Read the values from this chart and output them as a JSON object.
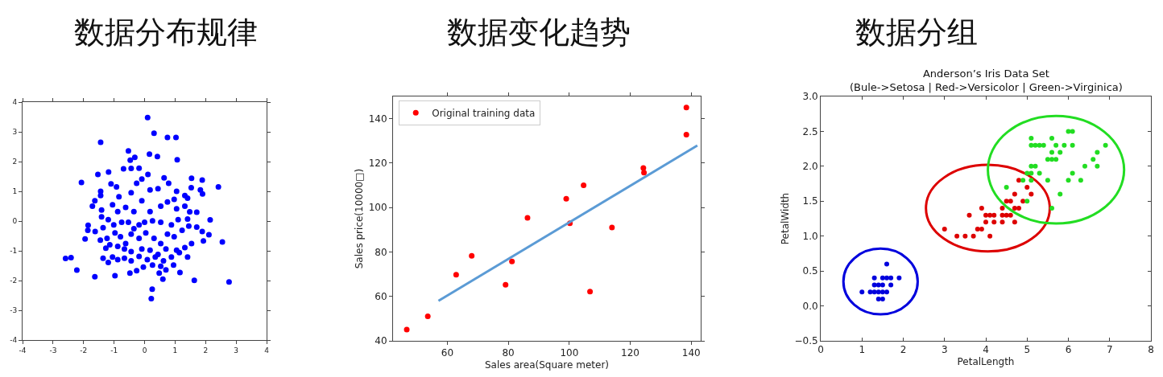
{
  "chart_data": [
    {
      "type": "scatter",
      "title": "数据分布规律",
      "xlim": [
        -4,
        4
      ],
      "ylim": [
        -4,
        4
      ],
      "xticks": [
        -4,
        -3,
        -2,
        -1,
        0,
        1,
        2,
        3,
        4
      ],
      "yticks": [
        -4,
        -3,
        -2,
        -1,
        0,
        1,
        2,
        3,
        4
      ],
      "legend": false,
      "marker": "circle",
      "series": [
        {
          "color": "#0000ff",
          "x": [
            0.1,
            0.31,
            0.75,
            1.03,
            -1.44,
            0.16,
            0.42,
            1.07,
            -0.53,
            -0.47,
            -0.32,
            -1.18,
            -1.53,
            -2.07,
            -0.69,
            -0.44,
            -0.18,
            0.11,
            0.64,
            1.54,
            1.89,
            2.42,
            1.53,
            1.83,
            1.9,
            -1.44,
            -1.44,
            -1.1,
            -0.92,
            -0.84,
            -0.44,
            -0.26,
            -0.09,
            0.18,
            0.44,
            0.79,
            1.05,
            1.32,
            1.41,
            -1.63,
            -1.71,
            -1.41,
            -1.41,
            -1.05,
            -0.88,
            -0.62,
            -0.35,
            -0.09,
            0.18,
            0.53,
            0.75,
            0.97,
            1.05,
            1.32,
            1.48,
            1.71,
            2.15,
            1.41,
            1.1,
            0.88,
            0.53,
            0.26,
            0.0,
            -0.18,
            -0.35,
            -0.53,
            -0.75,
            -1.01,
            -1.19,
            -1.36,
            -1.85,
            -1.86,
            -1.62,
            -1.95,
            -1.45,
            -1.23,
            -0.97,
            -0.79,
            -0.62,
            -0.44,
            -0.18,
            0.04,
            0.31,
            0.53,
            0.75,
            0.97,
            1.23,
            1.45,
            1.71,
            1.89,
            2.11,
            1.93,
            1.54,
            2.55,
            1.32,
            1.05,
            0.7,
            0.44,
            0.18,
            -0.09,
            -0.44,
            -0.66,
            -0.88,
            -1.14,
            -1.27,
            -1.36,
            -1.19,
            -1.05,
            -0.88,
            -0.66,
            -0.44,
            -0.18,
            0.09,
            0.35,
            0.62,
            0.88,
            1.14,
            1.41,
            0.95,
            0.7,
            0.53,
            0.26,
            -0.04,
            -0.26,
            -0.48,
            -0.97,
            -1.63,
            -2.22,
            -2.59,
            -2.41,
            0.48,
            0.6,
            1.16,
            1.63,
            2.77,
            0.25,
            0.22
          ],
          "values": [
            3.48,
            2.95,
            2.81,
            2.81,
            2.65,
            2.25,
            2.17,
            2.06,
            2.36,
            2.05,
            2.14,
            1.65,
            1.57,
            1.3,
            1.76,
            1.77,
            1.78,
            1.57,
            1.45,
            1.44,
            1.38,
            1.15,
            1.12,
            1.05,
            0.91,
            1.0,
            0.86,
            1.25,
            1.15,
            0.82,
            0.95,
            1.27,
            1.41,
            1.05,
            1.09,
            1.27,
            1.0,
            0.86,
            0.77,
            0.68,
            0.5,
            0.37,
            0.14,
            0.55,
            0.32,
            0.46,
            0.32,
            0.68,
            0.32,
            0.5,
            0.64,
            0.73,
            0.41,
            0.5,
            0.31,
            0.3,
            0.04,
            0.07,
            0.05,
            -0.13,
            -0.04,
            0.01,
            -0.04,
            -0.13,
            -0.26,
            -0.04,
            -0.04,
            -0.13,
            0.05,
            -0.22,
            -0.14,
            -0.31,
            -0.35,
            -0.6,
            -0.64,
            -0.58,
            -0.4,
            -0.53,
            -0.76,
            -0.44,
            -0.58,
            -0.4,
            -0.58,
            -0.76,
            -0.44,
            -0.53,
            -0.31,
            -0.17,
            -0.2,
            -0.35,
            -0.46,
            -0.67,
            -0.76,
            -0.7,
            -0.89,
            -0.98,
            -0.94,
            -1.12,
            -0.98,
            -0.94,
            -1.03,
            -0.94,
            -0.85,
            -0.8,
            -0.91,
            -1.25,
            -1.39,
            -1.21,
            -1.3,
            -1.25,
            -1.34,
            -1.19,
            -1.3,
            -1.21,
            -1.34,
            -1.21,
            -1.06,
            -1.21,
            -1.48,
            -1.64,
            -1.52,
            -1.48,
            -1.55,
            -1.67,
            -1.75,
            -1.84,
            -1.87,
            -1.65,
            -1.26,
            -1.23,
            -1.75,
            -1.95,
            -1.73,
            -1.99,
            -2.05,
            -2.29,
            -2.61
          ]
        }
      ]
    },
    {
      "type": "scatter",
      "title": "数据变化趋势",
      "xlabel": "Sales area(Square meter)",
      "ylabel": "Sales price(10000□)",
      "xlim": [
        42.2,
        143.1
      ],
      "ylim": [
        40,
        150
      ],
      "xticks": [
        60,
        80,
        100,
        120,
        140
      ],
      "yticks": [
        40,
        60,
        80,
        100,
        120,
        140
      ],
      "legend": "top left",
      "marker": "circle",
      "series": [
        {
          "name": "Original training data",
          "color": "#ff0000",
          "x": [
            46.7,
            53.6,
            62.9,
            68.0,
            79.1,
            81.2,
            86.3,
            99.0,
            100.2,
            104.7,
            106.8,
            114.0,
            124.3,
            124.5,
            138.4,
            138.4
          ],
          "values": [
            45.1,
            51.0,
            69.8,
            78.3,
            65.2,
            75.7,
            95.4,
            104.0,
            92.9,
            110.0,
            62.2,
            91.0,
            117.8,
            115.7,
            145.0,
            132.8
          ]
        },
        {
          "type": "line",
          "marker": "none",
          "color": "#5b9bd5",
          "x": [
            57.1,
            142.0
          ],
          "values": [
            58.0,
            127.9
          ]
        }
      ]
    },
    {
      "type": "scatter",
      "title": "数据分组",
      "subtitle": "Anderson’s Iris Data Set\n(Bule->Setosa | Red->Versicolor | Green->Virginica)",
      "xlabel": "PetalLength",
      "ylabel": "PetalWidth",
      "xlim": [
        0,
        8
      ],
      "ylim": [
        -0.5,
        3.0
      ],
      "xticks": [
        0,
        1,
        2,
        3,
        4,
        5,
        6,
        7,
        8
      ],
      "yticks": [
        {
          "value": -0.5,
          "label": "−0.5"
        },
        {
          "value": 0,
          "label": "0.0"
        },
        {
          "value": 0.5,
          "label": "0.5"
        },
        {
          "value": 1,
          "label": "1.0"
        },
        {
          "value": 1.5,
          "label": "1.5"
        },
        {
          "value": 2,
          "label": "2.0"
        },
        {
          "value": 2.5,
          "label": "2.5"
        },
        {
          "value": 3,
          "label": "3.0"
        }
      ],
      "legend": false,
      "marker": "circle",
      "series": [
        {
          "color": "#0000dd",
          "x": [
            1.0,
            1.2,
            1.3,
            1.4,
            1.5,
            1.6,
            1.3,
            1.4,
            1.5,
            1.7,
            1.3,
            1.5,
            1.6,
            1.7,
            1.9,
            1.6,
            1.4,
            1.5
          ],
          "values": [
            0.2,
            0.2,
            0.2,
            0.2,
            0.2,
            0.2,
            0.3,
            0.3,
            0.3,
            0.3,
            0.4,
            0.4,
            0.4,
            0.4,
            0.4,
            0.6,
            0.1,
            0.1
          ]
        },
        {
          "color": "#dd0000",
          "x": [
            3.0,
            3.3,
            3.5,
            3.7,
            4.1,
            3.8,
            3.9,
            3.6,
            3.9,
            4.0,
            4.1,
            4.2,
            4.0,
            4.2,
            4.4,
            4.4,
            4.5,
            4.6,
            4.4,
            4.7,
            4.8,
            4.5,
            4.6,
            4.9,
            4.7,
            4.7,
            4.8,
            5.0,
            5.1
          ],
          "values": [
            1.1,
            1.0,
            1.0,
            1.0,
            1.0,
            1.1,
            1.1,
            1.3,
            1.4,
            1.3,
            1.3,
            1.3,
            1.2,
            1.2,
            1.2,
            1.3,
            1.3,
            1.3,
            1.4,
            1.4,
            1.4,
            1.5,
            1.5,
            1.5,
            1.6,
            1.2,
            1.8,
            1.7,
            1.6
          ]
        },
        {
          "color": "#22dd22",
          "x": [
            4.5,
            5.0,
            4.9,
            5.1,
            5.5,
            6.0,
            6.3,
            5.0,
            5.1,
            5.3,
            6.1,
            5.1,
            5.2,
            6.4,
            6.7,
            5.5,
            5.6,
            5.7,
            6.6,
            5.6,
            5.8,
            6.7,
            5.1,
            5.2,
            5.3,
            5.4,
            5.7,
            5.9,
            6.1,
            6.9,
            5.1,
            5.6,
            6.0,
            6.1,
            5.8,
            5.6
          ],
          "values": [
            1.7,
            1.5,
            1.8,
            1.8,
            1.8,
            1.8,
            1.8,
            1.9,
            1.9,
            1.9,
            1.9,
            2.0,
            2.0,
            2.0,
            2.0,
            2.1,
            2.1,
            2.1,
            2.1,
            2.2,
            2.2,
            2.2,
            2.3,
            2.3,
            2.3,
            2.3,
            2.3,
            2.3,
            2.3,
            2.3,
            2.4,
            2.4,
            2.5,
            2.5,
            1.6,
            1.4
          ]
        }
      ]
    }
  ]
}
